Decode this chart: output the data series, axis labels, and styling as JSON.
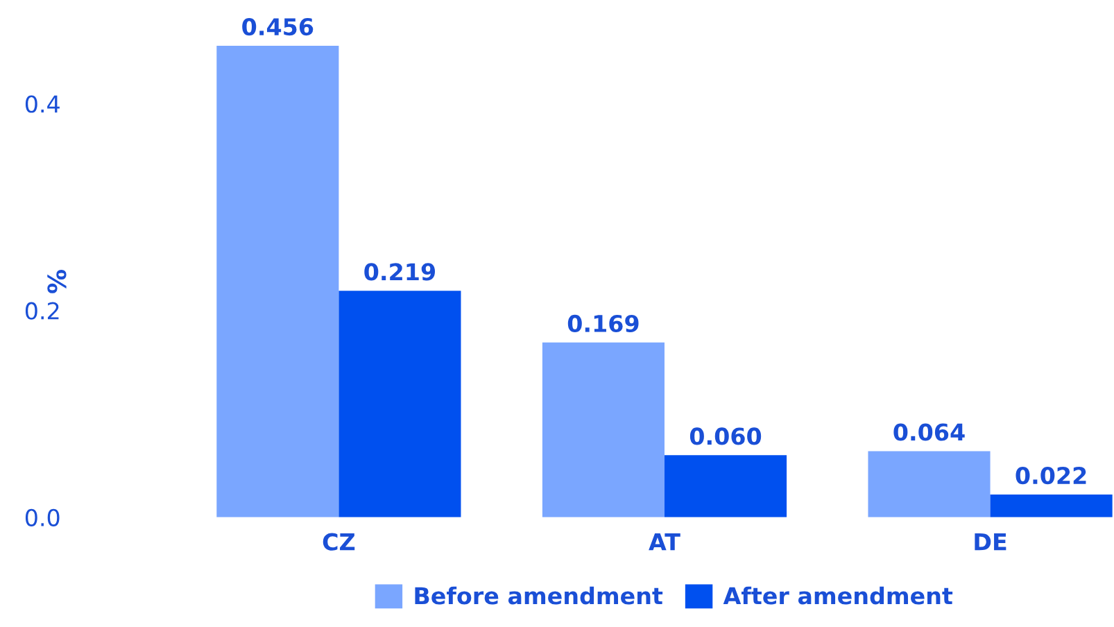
{
  "chart_data": {
    "type": "bar",
    "ylabel": "%",
    "categories": [
      "CZ",
      "AT",
      "DE"
    ],
    "series": [
      {
        "name": "Before amendment",
        "color": "#7aa6ff",
        "values": [
          0.456,
          0.169,
          0.064
        ],
        "value_labels": [
          "0.456",
          "0.169",
          "0.064"
        ]
      },
      {
        "name": "After amendment",
        "color": "#0050ef",
        "values": [
          0.219,
          0.06,
          0.022
        ],
        "value_labels": [
          "0.219",
          "0.060",
          "0.022"
        ]
      }
    ],
    "ylim": [
      0,
      0.456
    ],
    "yticks": [
      {
        "value": 0,
        "label": "0.0"
      },
      {
        "value": 0.2,
        "label": "0.2"
      },
      {
        "value": 0.4,
        "label": "0.4"
      }
    ],
    "grid": false,
    "legend": "bottom"
  }
}
